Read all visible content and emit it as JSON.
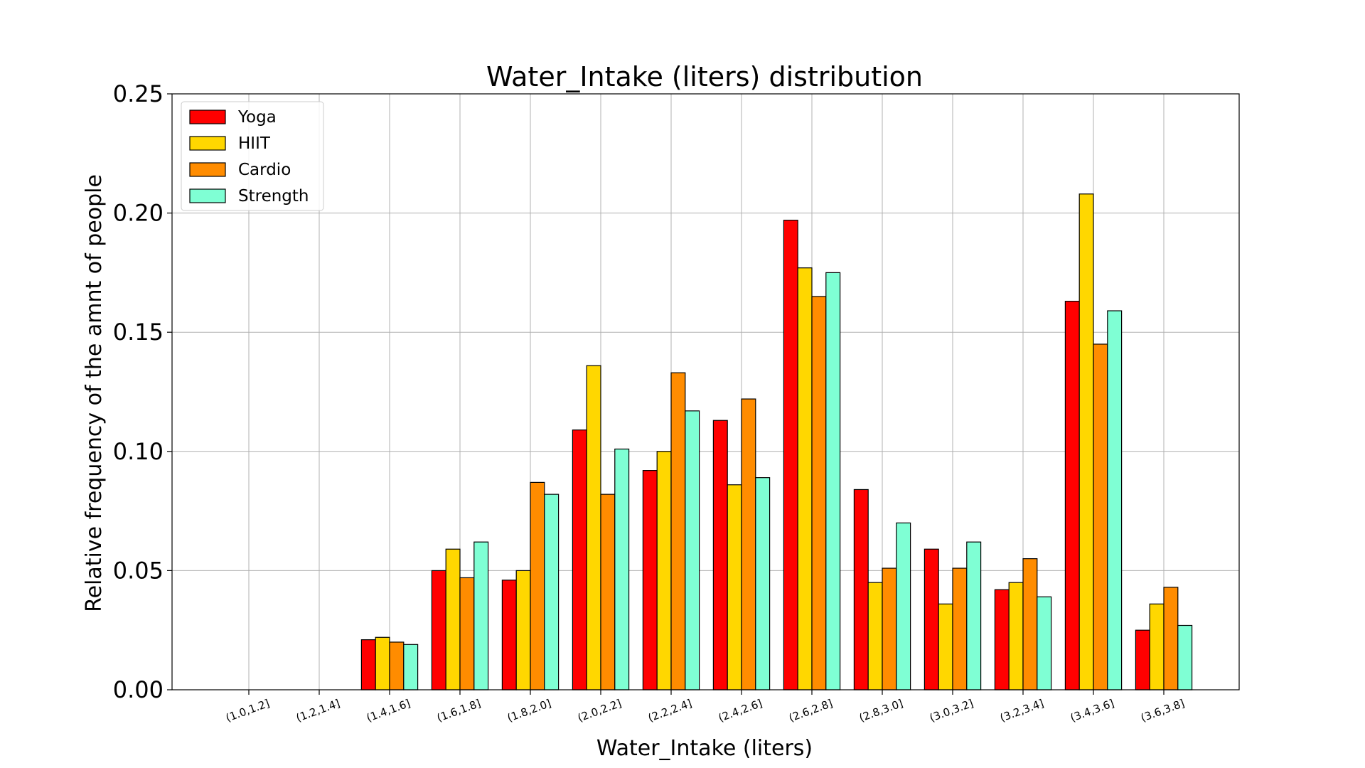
{
  "chart_data": {
    "type": "bar",
    "title": "Water_Intake (liters) distribution",
    "xlabel": "Water_Intake (liters)",
    "ylabel": "Relative frequency of the amnt of people",
    "ylim": [
      0,
      0.25
    ],
    "yticks": [
      "0.00",
      "0.05",
      "0.10",
      "0.15",
      "0.20",
      "0.25"
    ],
    "grid": true,
    "legend_position": "top-left",
    "categories": [
      "(1.0,1.2]",
      "(1.2,1.4]",
      "(1.4,1.6]",
      "(1.6,1.8]",
      "(1.8,2.0]",
      "(2.0,2.2]",
      "(2.2,2.4]",
      "(2.4,2.6]",
      "(2.6,2.8]",
      "(2.8,3.0]",
      "(3.0,3.2]",
      "(3.2,3.4]",
      "(3.4,3.6]",
      "(3.6,3.8]"
    ],
    "series": [
      {
        "name": "Yoga",
        "color": "#ff0000",
        "values": [
          0,
          0,
          0.021,
          0.05,
          0.046,
          0.109,
          0.092,
          0.113,
          0.197,
          0.084,
          0.059,
          0.042,
          0.163,
          0.025
        ]
      },
      {
        "name": "HIIT",
        "color": "#ffd700",
        "values": [
          0,
          0,
          0.022,
          0.059,
          0.05,
          0.136,
          0.1,
          0.086,
          0.177,
          0.045,
          0.036,
          0.045,
          0.208,
          0.036
        ]
      },
      {
        "name": "Cardio",
        "color": "#ff8c00",
        "values": [
          0,
          0,
          0.02,
          0.047,
          0.087,
          0.082,
          0.133,
          0.122,
          0.165,
          0.051,
          0.051,
          0.055,
          0.145,
          0.043
        ]
      },
      {
        "name": "Strength",
        "color": "#7fffd4",
        "values": [
          0,
          0,
          0.019,
          0.062,
          0.082,
          0.101,
          0.117,
          0.089,
          0.175,
          0.07,
          0.062,
          0.039,
          0.159,
          0.027
        ]
      }
    ]
  }
}
